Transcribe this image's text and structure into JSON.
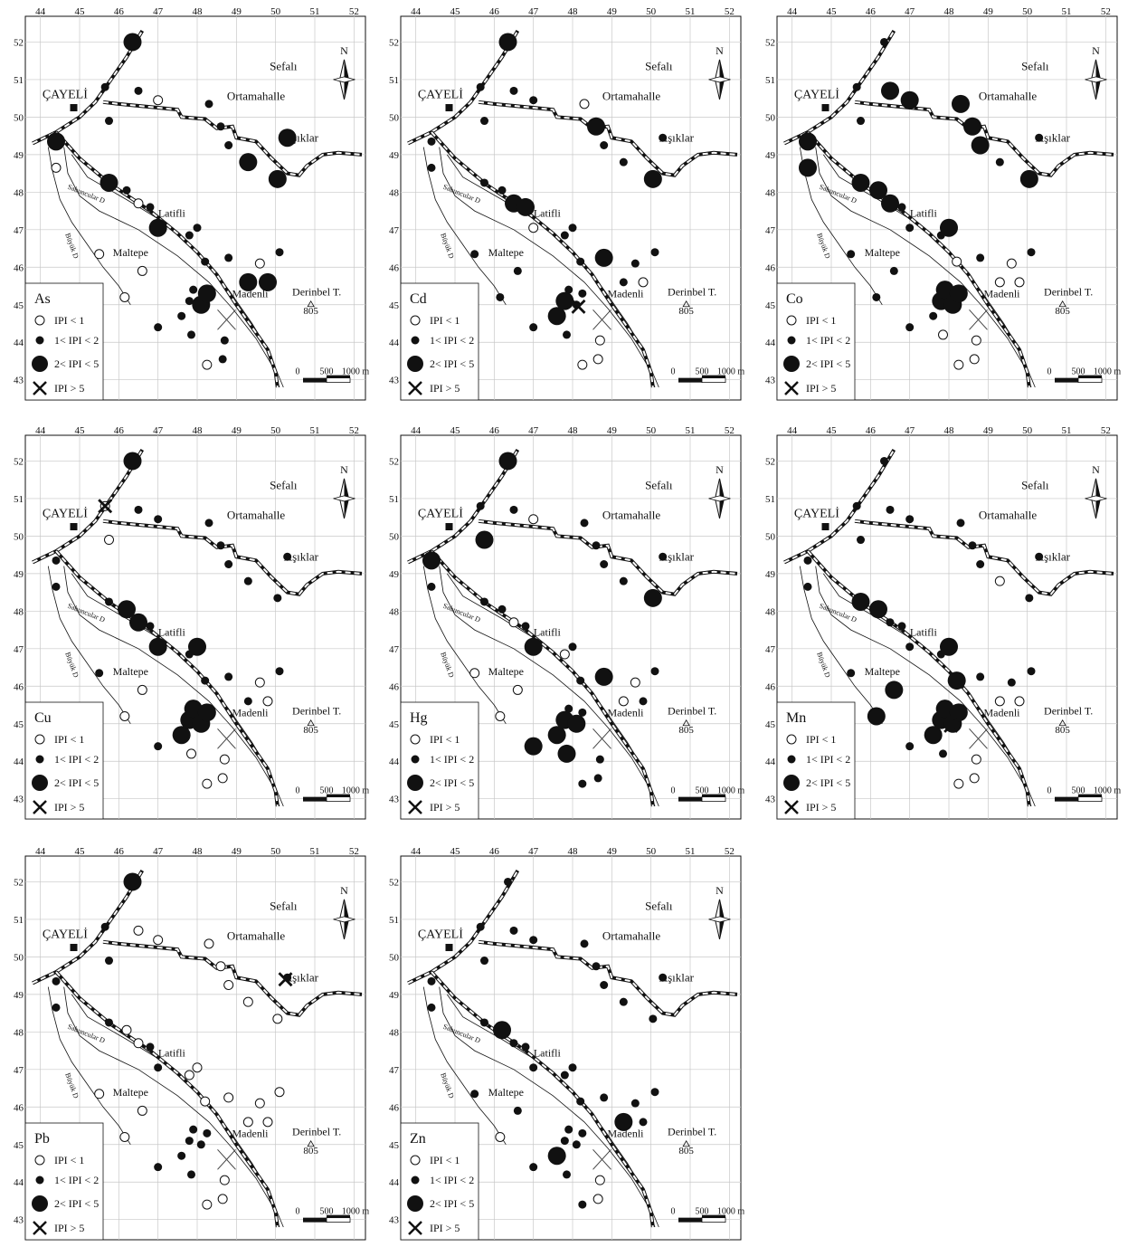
{
  "axes": {
    "x_ticks": [
      44,
      45,
      46,
      47,
      48,
      49,
      50,
      51,
      52
    ],
    "y_ticks": [
      43,
      44,
      45,
      46,
      47,
      48,
      49,
      50,
      51,
      52
    ]
  },
  "places": {
    "cayeli": "ÇAYELİ",
    "sefali": "Sefalı",
    "ortamahalle": "Ortamahalle",
    "asiklar": "Aşıklar",
    "latifli": "Latifli",
    "maltepe": "Maltepe",
    "madenli": "Madenli",
    "derinbel": "Derinbel T.",
    "elevation": "805",
    "stream": "Sabuncular D",
    "river": "Büyük D"
  },
  "north_label": "N",
  "scale_bar": [
    "0",
    "500",
    "1000 m"
  ],
  "legend_classes": [
    "IPI < 1",
    "1< IPI < 2",
    "2< IPI < 5",
    "IPI > 5"
  ],
  "colors": {
    "ink": "#111111",
    "grid": "#c8c8c8",
    "paper": "#ffffff"
  },
  "map_data": {
    "type": "proportional-symbol-map",
    "symbols": {
      "1": "open-circle",
      "2": "small-dot",
      "3": "large-dot",
      "4": "cross"
    },
    "stations": [
      [
        44.4,
        48.65
      ],
      [
        45.65,
        50.8
      ],
      [
        46.35,
        52.0
      ],
      [
        45.75,
        49.9
      ],
      [
        46.5,
        50.7
      ],
      [
        47.0,
        50.45
      ],
      [
        48.3,
        50.35
      ],
      [
        48.6,
        49.75
      ],
      [
        48.8,
        49.25
      ],
      [
        49.3,
        48.8
      ],
      [
        50.3,
        49.45
      ],
      [
        50.05,
        48.35
      ],
      [
        44.4,
        49.35
      ],
      [
        45.75,
        48.25
      ],
      [
        46.2,
        48.05
      ],
      [
        46.5,
        47.7
      ],
      [
        46.8,
        47.6
      ],
      [
        47.0,
        47.05
      ],
      [
        47.8,
        46.85
      ],
      [
        48.0,
        47.05
      ],
      [
        48.2,
        46.15
      ],
      [
        48.8,
        46.25
      ],
      [
        49.3,
        45.6
      ],
      [
        49.6,
        46.1
      ],
      [
        49.8,
        45.6
      ],
      [
        50.1,
        46.4
      ],
      [
        45.5,
        46.35
      ],
      [
        46.6,
        45.9
      ],
      [
        46.15,
        45.2
      ],
      [
        47.0,
        44.4
      ],
      [
        47.6,
        44.7
      ],
      [
        47.8,
        45.1
      ],
      [
        47.9,
        45.4
      ],
      [
        48.1,
        45.0
      ],
      [
        48.25,
        45.3
      ],
      [
        47.85,
        44.2
      ],
      [
        48.25,
        43.4
      ],
      [
        48.65,
        43.55
      ],
      [
        48.7,
        44.05
      ]
    ],
    "layers": [
      {
        "element": "As",
        "classes": [
          1,
          2,
          3,
          2,
          2,
          1,
          2,
          2,
          2,
          3,
          3,
          3,
          3,
          3,
          2,
          1,
          2,
          3,
          2,
          2,
          2,
          2,
          3,
          1,
          3,
          2,
          1,
          1,
          1,
          2,
          2,
          2,
          2,
          3,
          3,
          2,
          1,
          2,
          2
        ],
        "crosses": []
      },
      {
        "element": "Cd",
        "classes": [
          2,
          2,
          3,
          2,
          2,
          2,
          1,
          3,
          2,
          2,
          2,
          3,
          2,
          2,
          2,
          3,
          3,
          1,
          2,
          2,
          2,
          3,
          2,
          2,
          1,
          2,
          2,
          2,
          2,
          2,
          3,
          3,
          2,
          2,
          2,
          2,
          1,
          1,
          1
        ],
        "crosses": [
          [
            48.15,
            44.95
          ]
        ]
      },
      {
        "element": "Co",
        "classes": [
          3,
          2,
          2,
          2,
          3,
          3,
          3,
          3,
          3,
          2,
          2,
          3,
          3,
          3,
          3,
          3,
          2,
          2,
          2,
          3,
          1,
          2,
          1,
          1,
          1,
          2,
          2,
          2,
          2,
          2,
          2,
          3,
          3,
          3,
          3,
          1,
          1,
          1,
          1
        ],
        "crosses": []
      },
      {
        "element": "Cu",
        "classes": [
          2,
          1,
          3,
          1,
          2,
          2,
          2,
          2,
          2,
          2,
          2,
          2,
          2,
          2,
          3,
          3,
          2,
          3,
          2,
          3,
          2,
          2,
          2,
          1,
          1,
          2,
          2,
          1,
          1,
          2,
          3,
          3,
          3,
          3,
          3,
          1,
          1,
          1,
          1
        ],
        "crosses": [
          [
            45.65,
            50.8
          ]
        ]
      },
      {
        "element": "Hg",
        "classes": [
          2,
          2,
          3,
          3,
          2,
          1,
          2,
          2,
          2,
          2,
          2,
          3,
          3,
          2,
          2,
          1,
          2,
          3,
          1,
          2,
          2,
          3,
          1,
          1,
          2,
          2,
          1,
          1,
          1,
          3,
          3,
          3,
          2,
          3,
          2,
          3,
          2,
          2,
          2
        ],
        "crosses": []
      },
      {
        "element": "Mn",
        "classes": [
          2,
          2,
          2,
          2,
          2,
          2,
          2,
          2,
          2,
          1,
          2,
          2,
          2,
          3,
          3,
          2,
          2,
          2,
          2,
          3,
          3,
          2,
          1,
          2,
          1,
          2,
          2,
          3,
          3,
          2,
          3,
          3,
          3,
          3,
          3,
          2,
          1,
          1,
          1
        ],
        "crosses": [
          [
            48.05,
            44.95
          ]
        ]
      },
      {
        "element": "Pb",
        "classes": [
          2,
          2,
          3,
          2,
          1,
          1,
          1,
          1,
          1,
          1,
          2,
          1,
          2,
          2,
          1,
          1,
          2,
          2,
          1,
          1,
          1,
          1,
          1,
          1,
          1,
          1,
          1,
          1,
          1,
          2,
          2,
          2,
          2,
          2,
          2,
          2,
          1,
          1,
          1
        ],
        "crosses": [
          [
            50.25,
            49.4
          ]
        ]
      },
      {
        "element": "Zn",
        "classes": [
          2,
          2,
          2,
          2,
          2,
          2,
          2,
          2,
          2,
          2,
          2,
          2,
          2,
          2,
          3,
          2,
          2,
          2,
          2,
          2,
          2,
          2,
          3,
          2,
          2,
          2,
          2,
          2,
          1,
          2,
          3,
          2,
          2,
          2,
          2,
          2,
          2,
          1,
          1
        ],
        "crosses": []
      }
    ]
  }
}
